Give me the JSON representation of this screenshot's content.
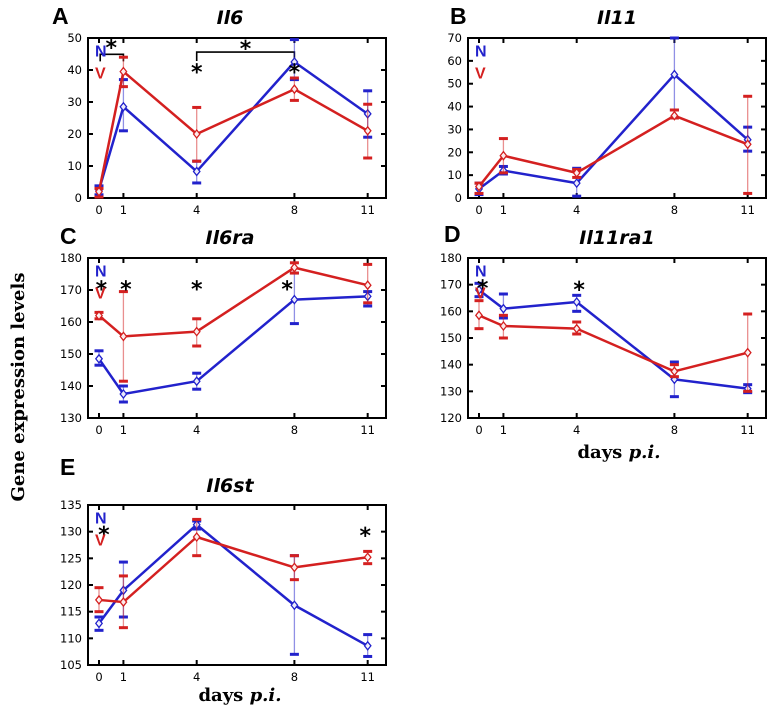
{
  "figure": {
    "ylabel": "Gene expression levels",
    "xlabel_roman": "days",
    "xlabel_italic": "p.i.",
    "background": "#ffffff",
    "colors": {
      "n_series": "#2222cc",
      "v_series": "#d42020",
      "annotation": "#000000",
      "axis": "#000000"
    },
    "legend_labels": {
      "n": "N",
      "v": "V"
    }
  },
  "chart_data": [
    {
      "type": "line",
      "panel_label": "A",
      "title": "Il6",
      "x": [
        0,
        1,
        4,
        8,
        11
      ],
      "xticks": [
        "0",
        "1",
        "4",
        "8",
        "11"
      ],
      "yticks": [
        0,
        10,
        20,
        30,
        40,
        50
      ],
      "ylim": [
        0,
        50
      ],
      "xlim": [
        -0.45,
        11.75
      ],
      "series": [
        {
          "name": "N",
          "color": "#2222cc",
          "values": [
            2.5,
            28.5,
            8.3,
            42.5,
            26.3
          ],
          "err_lo": [
            1,
            21,
            4.7,
            37,
            19
          ],
          "err_hi": [
            3.8,
            37,
            11.5,
            49.5,
            33.5
          ]
        },
        {
          "name": "V",
          "color": "#d42020",
          "values": [
            2,
            39.5,
            20,
            34,
            21
          ],
          "err_lo": [
            0.3,
            34.8,
            11.5,
            30.5,
            12.5
          ],
          "err_hi": [
            3,
            44,
            28.3,
            37.5,
            29.3
          ]
        }
      ],
      "stars": [
        {
          "x": 0.5,
          "y": 47.2
        },
        {
          "x": 4,
          "y": 39.6
        },
        {
          "x": 6,
          "y": 46.8
        },
        {
          "x": 8,
          "y": 39.6
        }
      ],
      "brackets": [
        {
          "x1": 0.05,
          "x2": 1.0,
          "y": 44.9,
          "tick": 2.2
        },
        {
          "x1": 4,
          "x2": 8,
          "y": 45.6,
          "tick": 2.8
        }
      ]
    },
    {
      "type": "line",
      "panel_label": "B",
      "title": "Il11",
      "x": [
        0,
        1,
        4,
        8,
        11
      ],
      "xticks": [
        "0",
        "1",
        "4",
        "8",
        "11"
      ],
      "yticks": [
        0,
        10,
        20,
        30,
        40,
        50,
        60,
        70
      ],
      "ylim": [
        0,
        70
      ],
      "xlim": [
        -0.45,
        11.75
      ],
      "series": [
        {
          "name": "N",
          "color": "#2222cc",
          "values": [
            4,
            12,
            6.5,
            54,
            25.5
          ],
          "err_lo": [
            1.5,
            10.5,
            0.8,
            38.5,
            20.5
          ],
          "err_hi": [
            6.5,
            13.8,
            13,
            70,
            31
          ]
        },
        {
          "name": "V",
          "color": "#d42020",
          "values": [
            5,
            18.5,
            11,
            36,
            23.5
          ],
          "err_lo": [
            2,
            11,
            9,
            35,
            2
          ],
          "err_hi": [
            6.5,
            26,
            12.5,
            38.5,
            44.5
          ]
        }
      ],
      "stars": [],
      "brackets": []
    },
    {
      "type": "line",
      "panel_label": "C",
      "title": "Il6ra",
      "x": [
        0,
        1,
        4,
        8,
        11
      ],
      "xticks": [
        "0",
        "1",
        "4",
        "8",
        "11"
      ],
      "yticks": [
        130,
        140,
        150,
        160,
        170,
        180
      ],
      "ylim": [
        130,
        180
      ],
      "xlim": [
        -0.45,
        11.75
      ],
      "series": [
        {
          "name": "N",
          "color": "#2222cc",
          "values": [
            148.5,
            137.5,
            141.5,
            167,
            168
          ],
          "err_lo": [
            146.5,
            135,
            139,
            159.5,
            165
          ],
          "err_hi": [
            151,
            140,
            144,
            175.3,
            169.5
          ]
        },
        {
          "name": "V",
          "color": "#d42020",
          "values": [
            162,
            155.5,
            157,
            177,
            171.5
          ],
          "err_lo": [
            161,
            141.5,
            152.5,
            175.3,
            166
          ],
          "err_hi": [
            163,
            169.5,
            161,
            178.5,
            178
          ]
        }
      ],
      "stars": [
        {
          "x": 0.1,
          "y": 170.5
        },
        {
          "x": 1.1,
          "y": 170.5
        },
        {
          "x": 4,
          "y": 170.5
        },
        {
          "x": 7.7,
          "y": 170.5
        }
      ],
      "brackets": []
    },
    {
      "type": "line",
      "panel_label": "D",
      "title": "Il11ra1",
      "x": [
        0,
        1,
        4,
        8,
        11
      ],
      "xticks": [
        "0",
        "1",
        "4",
        "8",
        "11"
      ],
      "yticks": [
        120,
        130,
        140,
        150,
        160,
        170,
        180
      ],
      "ylim": [
        120,
        180
      ],
      "xlim": [
        -0.45,
        11.75
      ],
      "series": [
        {
          "name": "N",
          "color": "#2222cc",
          "values": [
            168,
            161,
            163.5,
            134.5,
            131
          ],
          "err_lo": [
            165.5,
            157.5,
            160,
            128,
            129.5
          ],
          "err_hi": [
            170.5,
            166.5,
            166,
            141,
            132.5
          ]
        },
        {
          "name": "V",
          "color": "#d42020",
          "values": [
            158.5,
            154.5,
            153.5,
            137.5,
            144.5
          ],
          "err_lo": [
            153.5,
            150,
            151.5,
            135.5,
            130
          ],
          "err_hi": [
            164,
            158.5,
            156,
            140,
            159
          ]
        }
      ],
      "stars": [
        {
          "x": 0.15,
          "y": 169
        },
        {
          "x": 4.1,
          "y": 168.3
        }
      ],
      "brackets": []
    },
    {
      "type": "line",
      "panel_label": "E",
      "title": "Il6st",
      "x": [
        0,
        1,
        4,
        8,
        11
      ],
      "xticks": [
        "0",
        "1",
        "4",
        "8",
        "11"
      ],
      "yticks": [
        105,
        110,
        115,
        120,
        125,
        130,
        135
      ],
      "ylim": [
        105,
        135
      ],
      "xlim": [
        -0.45,
        11.75
      ],
      "series": [
        {
          "name": "N",
          "color": "#2222cc",
          "values": [
            112.8,
            119,
            131.3,
            116.2,
            108.6
          ],
          "err_lo": [
            111.5,
            114,
            130.5,
            107,
            106.6
          ],
          "err_hi": [
            114,
            124.3,
            132,
            125.5,
            110.7
          ]
        },
        {
          "name": "V",
          "color": "#d42020",
          "values": [
            117.2,
            116.8,
            129,
            123.3,
            125.2
          ],
          "err_lo": [
            115,
            112,
            125.5,
            121,
            124
          ],
          "err_hi": [
            119.5,
            121.7,
            132.3,
            125.5,
            126.3
          ]
        }
      ],
      "stars": [
        {
          "x": 0.2,
          "y": 129.6
        },
        {
          "x": 10.9,
          "y": 129.4
        }
      ],
      "brackets": []
    }
  ]
}
